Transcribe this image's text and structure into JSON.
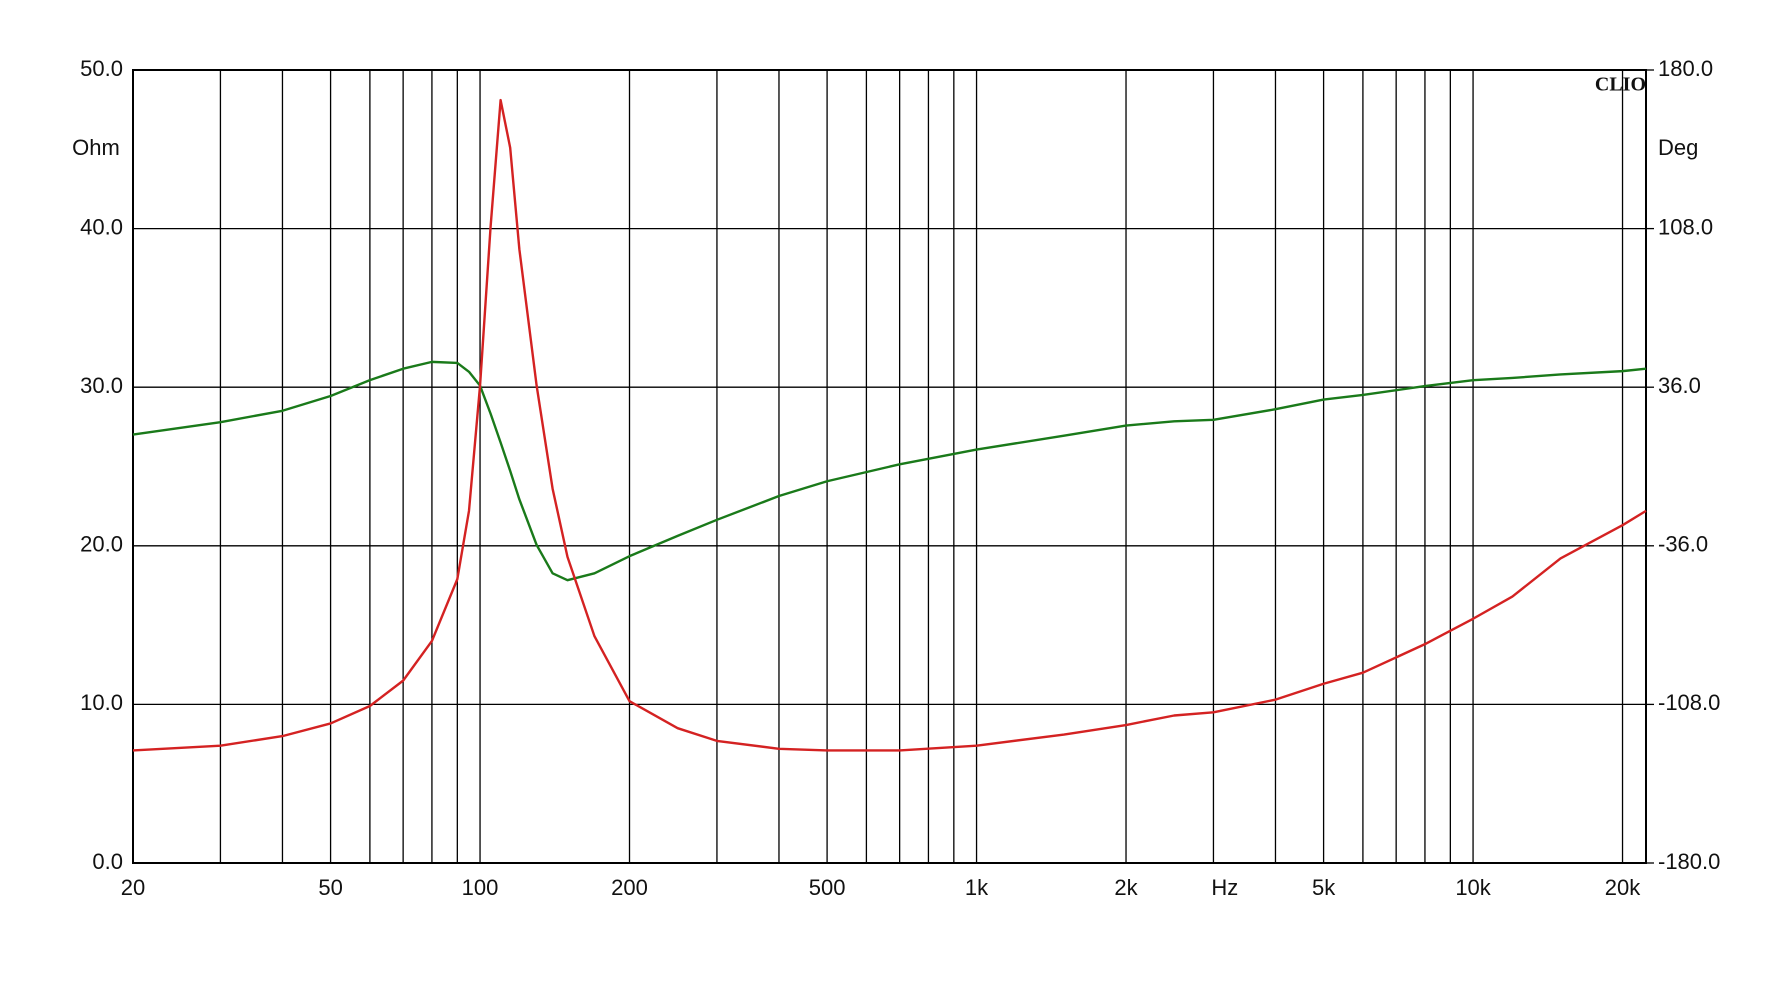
{
  "chart_data": {
    "type": "line",
    "brand": "CLIO",
    "xlabel": "Hz",
    "ylabel": "Ohm",
    "y2label": "Deg",
    "xscale": "log",
    "grid": true,
    "xlim": [
      20,
      22300
    ],
    "ylim": [
      0,
      50
    ],
    "y2lim": [
      -180,
      180
    ],
    "xticks": [
      20,
      50,
      100,
      200,
      500,
      {
        "value": 1000,
        "label": "1k"
      },
      {
        "value": 2000,
        "label": "2k"
      },
      {
        "value": 5000,
        "label": "5k"
      },
      {
        "value": 10000,
        "label": "10k"
      },
      {
        "value": 20000,
        "label": "20k"
      }
    ],
    "minor_xticks": [
      30,
      40,
      60,
      70,
      80,
      90,
      300,
      400,
      600,
      700,
      800,
      900,
      3000,
      4000,
      6000,
      7000,
      8000,
      9000
    ],
    "yticks": [
      {
        "value": 0,
        "label": "0.0"
      },
      {
        "value": 10,
        "label": "10.0"
      },
      {
        "value": 20,
        "label": "20.0"
      },
      {
        "value": 30,
        "label": "30.0"
      },
      {
        "value": 40,
        "label": "40.0"
      },
      {
        "value": 50,
        "label": "50.0"
      }
    ],
    "y2ticks": [
      {
        "value": -180,
        "label": "-180.0"
      },
      {
        "value": -108,
        "label": "-108.0"
      },
      {
        "value": -36,
        "label": "-36.0"
      },
      {
        "value": 36,
        "label": "36.0"
      },
      {
        "value": 108,
        "label": "108.0"
      },
      {
        "value": 180,
        "label": "180.0"
      }
    ],
    "x": [
      20,
      30,
      40,
      50,
      60,
      70,
      80,
      90,
      95,
      100,
      105,
      110,
      115,
      120,
      130,
      140,
      150,
      170,
      200,
      250,
      300,
      400,
      500,
      700,
      1000,
      1500,
      2000,
      2500,
      3000,
      4000,
      5000,
      6000,
      8000,
      10000,
      12000,
      15000,
      20000,
      22300
    ],
    "series": [
      {
        "color": "#d42222",
        "values": [
          7.1,
          7.4,
          8.0,
          8.8,
          9.9,
          11.5,
          14.0,
          17.9,
          22.2,
          30.1,
          40.1,
          48.1,
          45.1,
          38.7,
          30.1,
          23.6,
          19.3,
          14.3,
          10.2,
          8.5,
          7.7,
          7.2,
          7.1,
          7.1,
          7.4,
          8.1,
          8.7,
          9.3,
          9.5,
          10.3,
          11.3,
          12.0,
          13.8,
          15.4,
          16.8,
          19.2,
          21.3,
          22.2
        ]
      },
      {
        "color": "#1a7a1a",
        "axis": "y2",
        "values": [
          14.5,
          20.1,
          25.3,
          32.0,
          39.2,
          44.4,
          47.5,
          47.0,
          43.0,
          36.7,
          24.0,
          10.9,
          -2.0,
          -14.9,
          -35.6,
          -48.5,
          -51.6,
          -48.5,
          -40.7,
          -31.5,
          -24.2,
          -13.4,
          -6.7,
          1.0,
          7.7,
          14.0,
          18.6,
          20.5,
          21.2,
          26.0,
          30.4,
          32.5,
          36.5,
          39.2,
          40.2,
          41.8,
          43.3,
          44.4
        ]
      }
    ]
  }
}
